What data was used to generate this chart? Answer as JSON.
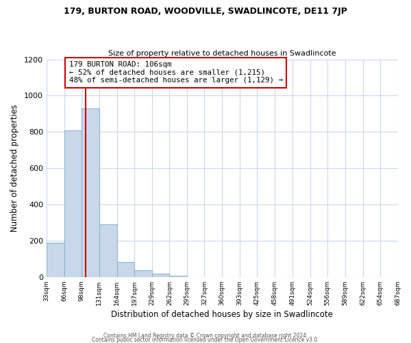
{
  "title1": "179, BURTON ROAD, WOODVILLE, SWADLINCOTE, DE11 7JP",
  "title2": "Size of property relative to detached houses in Swadlincote",
  "xlabel": "Distribution of detached houses by size in Swadlincote",
  "ylabel": "Number of detached properties",
  "footer1": "Contains HM Land Registry data © Crown copyright and database right 2024.",
  "footer2": "Contains public sector information licensed under the Open Government Licence v3.0.",
  "bin_labels": [
    "33sqm",
    "66sqm",
    "98sqm",
    "131sqm",
    "164sqm",
    "197sqm",
    "229sqm",
    "262sqm",
    "295sqm",
    "327sqm",
    "360sqm",
    "393sqm",
    "425sqm",
    "458sqm",
    "491sqm",
    "524sqm",
    "556sqm",
    "589sqm",
    "622sqm",
    "654sqm",
    "687sqm"
  ],
  "bar_values": [
    190,
    810,
    930,
    290,
    82,
    38,
    18,
    8,
    0,
    0,
    0,
    0,
    0,
    0,
    0,
    0,
    0,
    0,
    0,
    0
  ],
  "bar_color": "#c8d8ea",
  "bar_edge_color": "#8ab4cc",
  "vline_x": 106,
  "vline_color": "#cc0000",
  "annotation_text": "179 BURTON ROAD: 106sqm\n← 52% of detached houses are smaller (1,215)\n48% of semi-detached houses are larger (1,129) →",
  "annotation_box_color": "#ffffff",
  "annotation_box_edge": "#cc0000",
  "ylim": [
    0,
    1200
  ],
  "yticks": [
    0,
    200,
    400,
    600,
    800,
    1000,
    1200
  ],
  "grid_color": "#c8d8ea",
  "bg_color": "#ffffff"
}
